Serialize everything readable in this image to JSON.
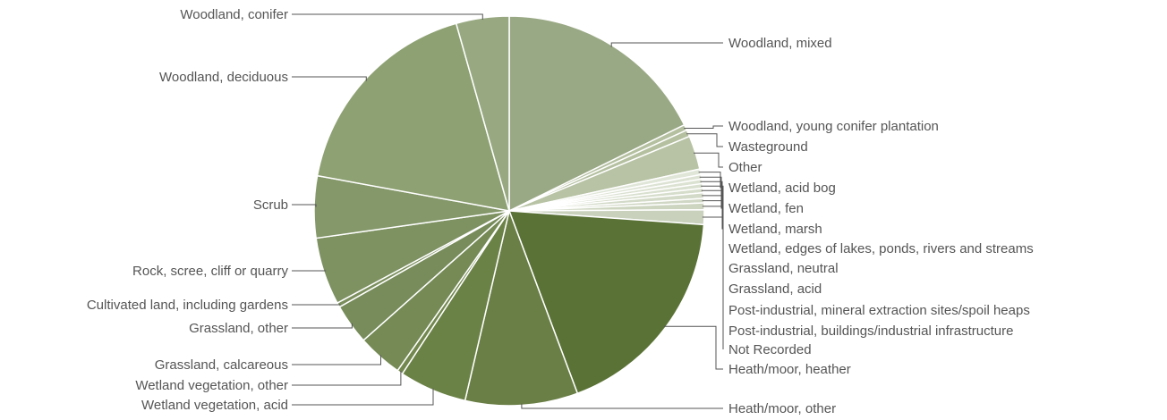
{
  "chart_data": {
    "type": "pie",
    "title": "",
    "legend": "none",
    "slices": [
      {
        "label": "Woodland, mixed",
        "value": 19.0,
        "color": "#9aa985"
      },
      {
        "label": "Woodland, young conifer plantation",
        "value": 0.5,
        "color": "#b4c0a0"
      },
      {
        "label": "Wasteground",
        "value": 0.6,
        "color": "#b4c0a0"
      },
      {
        "label": "Other",
        "value": 3.0,
        "color": "#b7c3a4"
      },
      {
        "label": "Wetland, acid bog",
        "value": 0.5,
        "color": "#e0e6d8"
      },
      {
        "label": "Wetland, fen",
        "value": 0.4,
        "color": "#dde3d4"
      },
      {
        "label": "Wetland, marsh",
        "value": 0.4,
        "color": "#dce2d2"
      },
      {
        "label": "Wetland, edges of lakes, ponds, rivers and streams",
        "value": 0.4,
        "color": "#d9e0cf"
      },
      {
        "label": "Grassland, neutral",
        "value": 0.4,
        "color": "#d6ddcb"
      },
      {
        "label": "Grassland, acid",
        "value": 0.5,
        "color": "#d3dac8"
      },
      {
        "label": "Post-industrial, mineral extraction sites/spoil heaps",
        "value": 0.4,
        "color": "#d0d7c4"
      },
      {
        "label": "Post-industrial, buildings/industrial infrastructure",
        "value": 0.6,
        "color": "#cdd5c0"
      },
      {
        "label": "Not Recorded",
        "value": 1.3,
        "color": "#c9d1bc"
      },
      {
        "label": "Heath/moor, heather",
        "value": 19.5,
        "color": "#5a7236"
      },
      {
        "label": "Heath/moor, other",
        "value": 10.0,
        "color": "#6a7f46"
      },
      {
        "label": "Wetland vegetation, acid",
        "value": 6.0,
        "color": "#6b8246"
      },
      {
        "label": "Wetland vegetation, other",
        "value": 0.5,
        "color": "#73884f"
      },
      {
        "label": "Grassland, calcareous",
        "value": 4.0,
        "color": "#758a55"
      },
      {
        "label": "Grassland, other",
        "value": 3.6,
        "color": "#778c5a"
      },
      {
        "label": "Cultivated land, including gardens",
        "value": 0.4,
        "color": "#7b8f5d"
      },
      {
        "label": "Rock, scree, cliff or quarry",
        "value": 6.0,
        "color": "#7d9161"
      },
      {
        "label": "Scrub",
        "value": 5.5,
        "color": "#84986a"
      },
      {
        "label": "Woodland, deciduous",
        "value": 19.0,
        "color": "#8ea173"
      },
      {
        "label": "Woodland, conifer",
        "value": 4.7,
        "color": "#98a982"
      }
    ]
  }
}
